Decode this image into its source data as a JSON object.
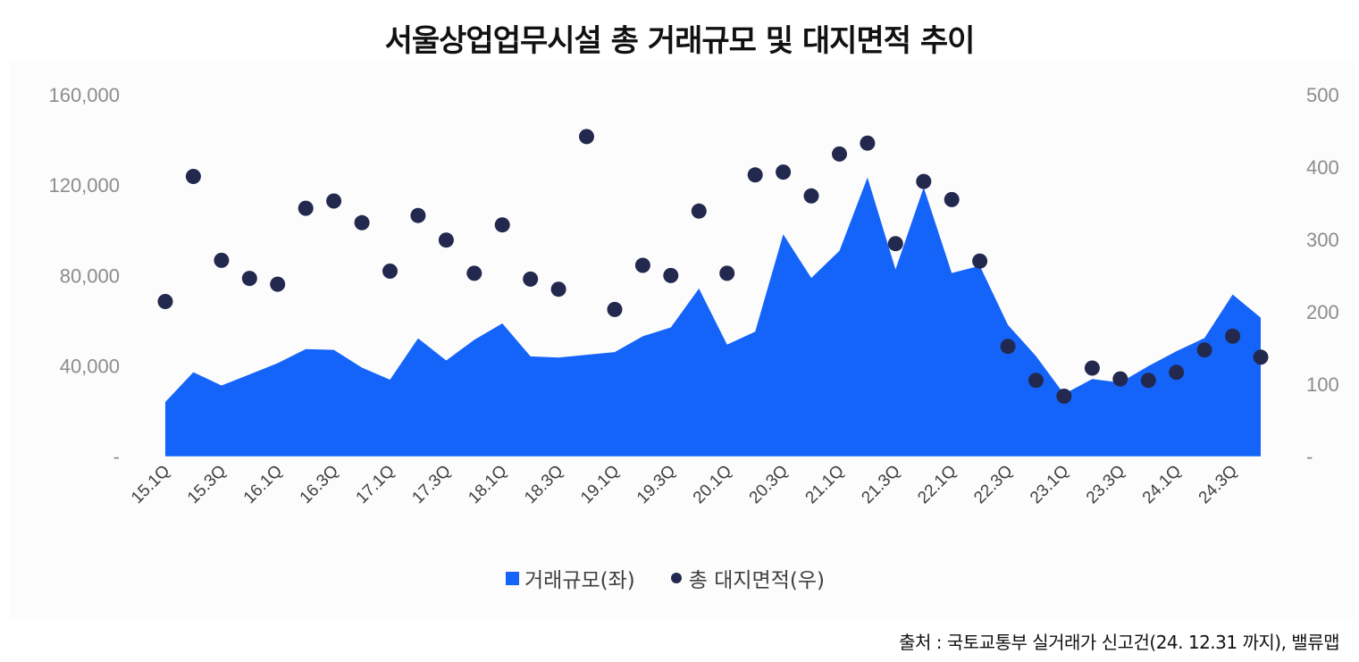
{
  "title": "서울상업업무시설 총 거래규모 및 대지면적 추이",
  "legend": {
    "series1": "거래규모(좌)",
    "series2": "총 대지면적(우)"
  },
  "source": "출처 : 국토교통부 실거래가 신고건(24. 12.31 까지), 밸류맵",
  "colors": {
    "area": "#1464FA",
    "dots": "#23284F",
    "axis_text": "#8C8C8C",
    "panel_bg": "#FCFCFC"
  },
  "chart_data": {
    "type": "area+scatter",
    "title": "서울상업업무시설 총 거래규모 및 대지면적 추이",
    "xlabel": "",
    "ylabel_left": "",
    "ylabel_right": "",
    "categories": [
      "15.1Q",
      "15.2Q",
      "15.3Q",
      "15.4Q",
      "16.1Q",
      "16.2Q",
      "16.3Q",
      "16.4Q",
      "17.1Q",
      "17.2Q",
      "17.3Q",
      "17.4Q",
      "18.1Q",
      "18.2Q",
      "18.3Q",
      "18.4Q",
      "19.1Q",
      "19.2Q",
      "19.3Q",
      "19.4Q",
      "20.1Q",
      "20.2Q",
      "20.3Q",
      "20.4Q",
      "21.1Q",
      "21.2Q",
      "21.3Q",
      "21.4Q",
      "22.1Q",
      "22.2Q",
      "22.3Q",
      "22.4Q",
      "23.1Q",
      "23.2Q",
      "23.3Q",
      "23.4Q",
      "24.1Q",
      "24.2Q",
      "24.3Q",
      "24.4Q"
    ],
    "x_tick_labels": [
      "15.1Q",
      "15.3Q",
      "16.1Q",
      "16.3Q",
      "17.1Q",
      "17.3Q",
      "18.1Q",
      "18.3Q",
      "19.1Q",
      "19.3Q",
      "20.1Q",
      "20.3Q",
      "21.1Q",
      "21.3Q",
      "22.1Q",
      "22.3Q",
      "23.1Q",
      "23.3Q",
      "24.1Q",
      "24.3Q"
    ],
    "series": [
      {
        "name": "거래규모(좌)",
        "type": "area",
        "axis": "left",
        "values": [
          24000,
          37200,
          31300,
          36200,
          41200,
          47400,
          47100,
          39200,
          33900,
          52200,
          42400,
          51500,
          58800,
          44200,
          43700,
          44900,
          46100,
          53100,
          57000,
          74200,
          49400,
          55100,
          98200,
          78900,
          90900,
          123400,
          82700,
          119000,
          81100,
          84300,
          58100,
          44300,
          27500,
          34200,
          32600,
          39900,
          46500,
          52300,
          71600,
          61300
        ]
      },
      {
        "name": "총 대지면적(우)",
        "type": "scatter",
        "axis": "right",
        "values": [
          214,
          387,
          271,
          246,
          238,
          343,
          353,
          323,
          256,
          333,
          299,
          253,
          320,
          245,
          231,
          442,
          203,
          264,
          250,
          339,
          253,
          389,
          393,
          360,
          418,
          433,
          294,
          380,
          355,
          270,
          152,
          105,
          83,
          122,
          107,
          105,
          116,
          147,
          166,
          137
        ]
      }
    ],
    "y_left": {
      "ylim": [
        0,
        160000
      ],
      "ticks": [
        "-",
        "40,000",
        "80,000",
        "120,000",
        "160,000"
      ]
    },
    "y_right": {
      "ylim": [
        0,
        500
      ],
      "ticks": [
        "-",
        "100",
        "200",
        "300",
        "400",
        "500"
      ]
    },
    "grid": false,
    "legend_position": "bottom"
  }
}
